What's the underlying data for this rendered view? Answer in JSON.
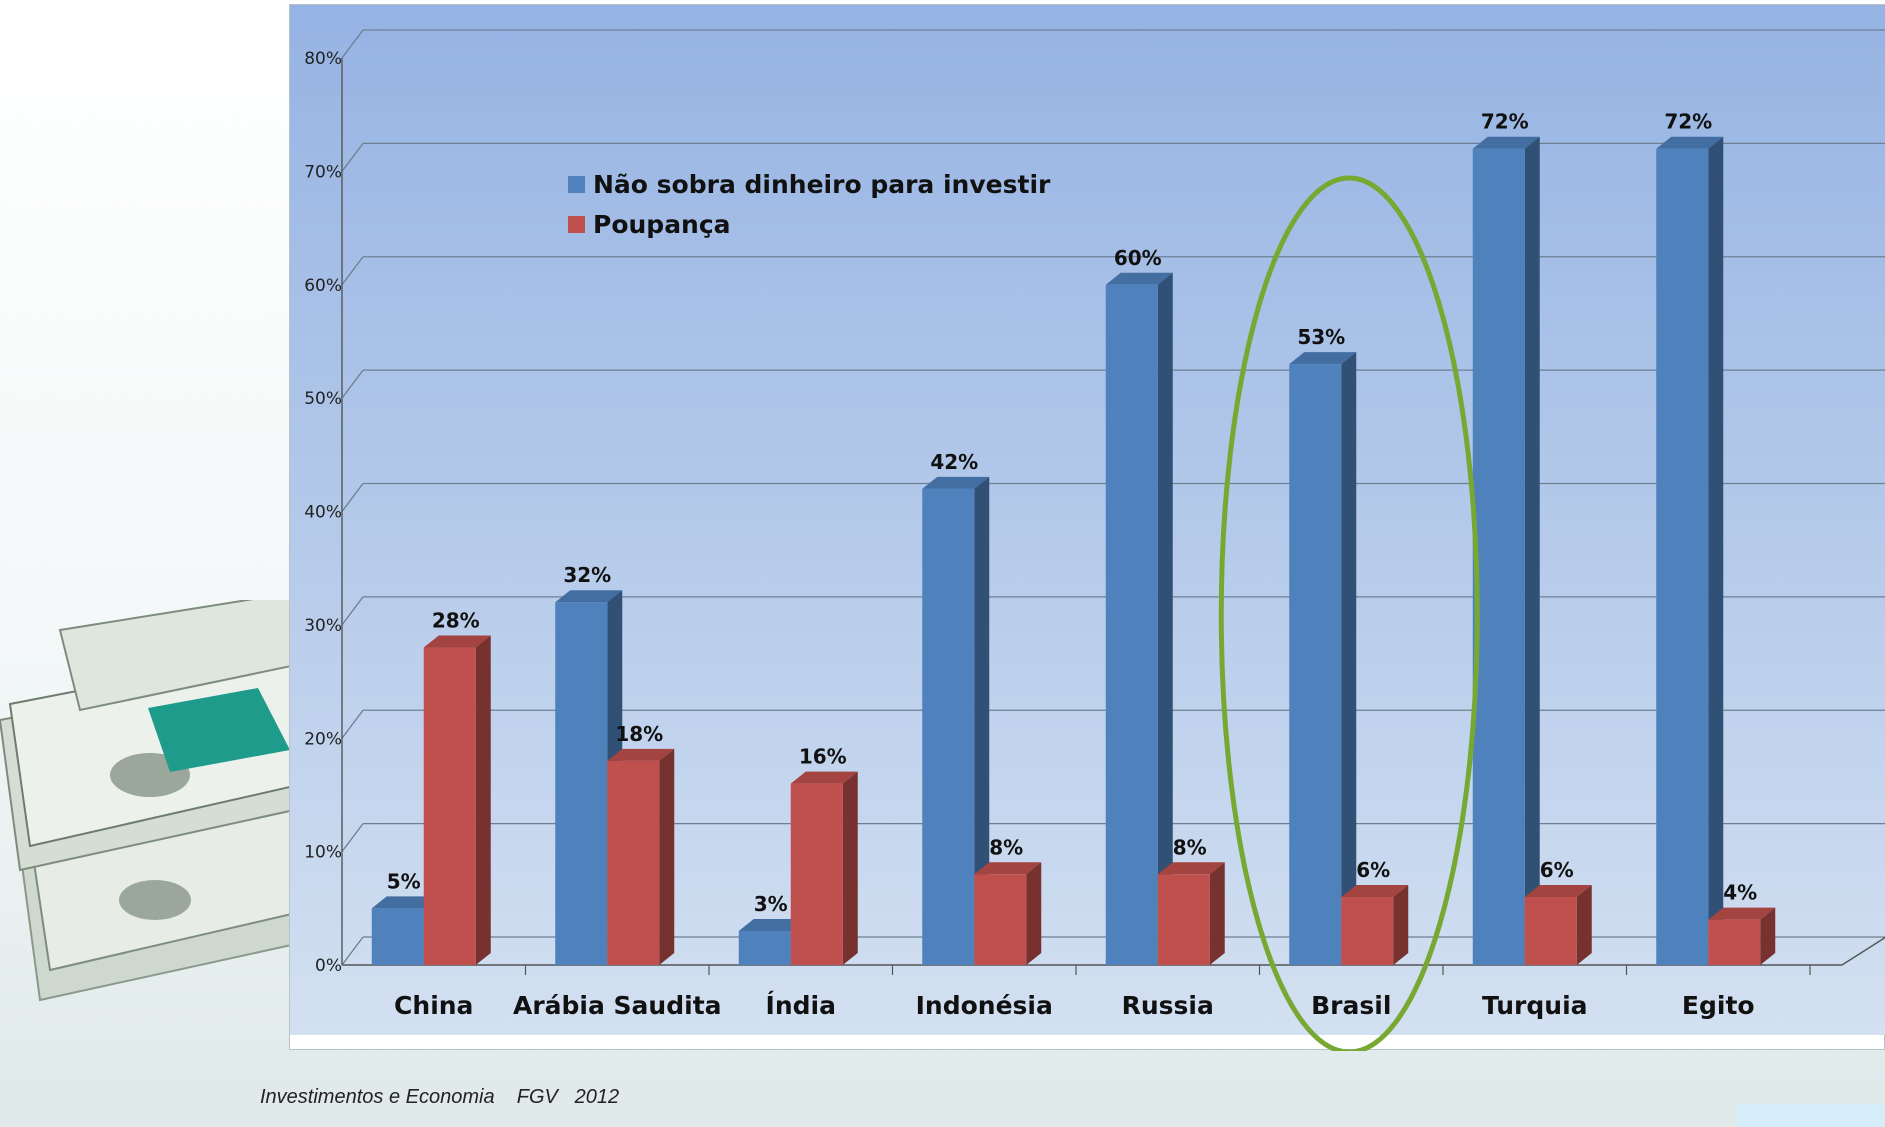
{
  "footer": {
    "text": "Investimentos e Economia    FGV   2012"
  },
  "colors": {
    "series_blue": "#4F81BD",
    "series_red": "#C0504D",
    "highlight": "#76A832",
    "plot_bg_top": "#95B3E3",
    "plot_bg_bottom": "#D3E0F1"
  },
  "chart_data": {
    "type": "bar",
    "style": "3d-clustered-column",
    "categories": [
      "China",
      "Arábia Saudita",
      "Índia",
      "Indonésia",
      "Russia",
      "Brasil",
      "Turquia",
      "Egito"
    ],
    "series": [
      {
        "name": "Não sobra dinheiro para investir",
        "color": "#4F81BD",
        "values": [
          5,
          32,
          3,
          42,
          60,
          53,
          72,
          72
        ]
      },
      {
        "name": "Poupança",
        "color": "#C0504D",
        "values": [
          28,
          18,
          16,
          8,
          8,
          6,
          6,
          4
        ]
      }
    ],
    "y_tick_labels": [
      "0%",
      "10%",
      "20%",
      "30%",
      "40%",
      "50%",
      "60%",
      "70%",
      "80%"
    ],
    "ylim": [
      0,
      80
    ],
    "value_suffix": "%",
    "grid": true,
    "legend_position": "top-left",
    "highlighted_category": "Brasil"
  }
}
